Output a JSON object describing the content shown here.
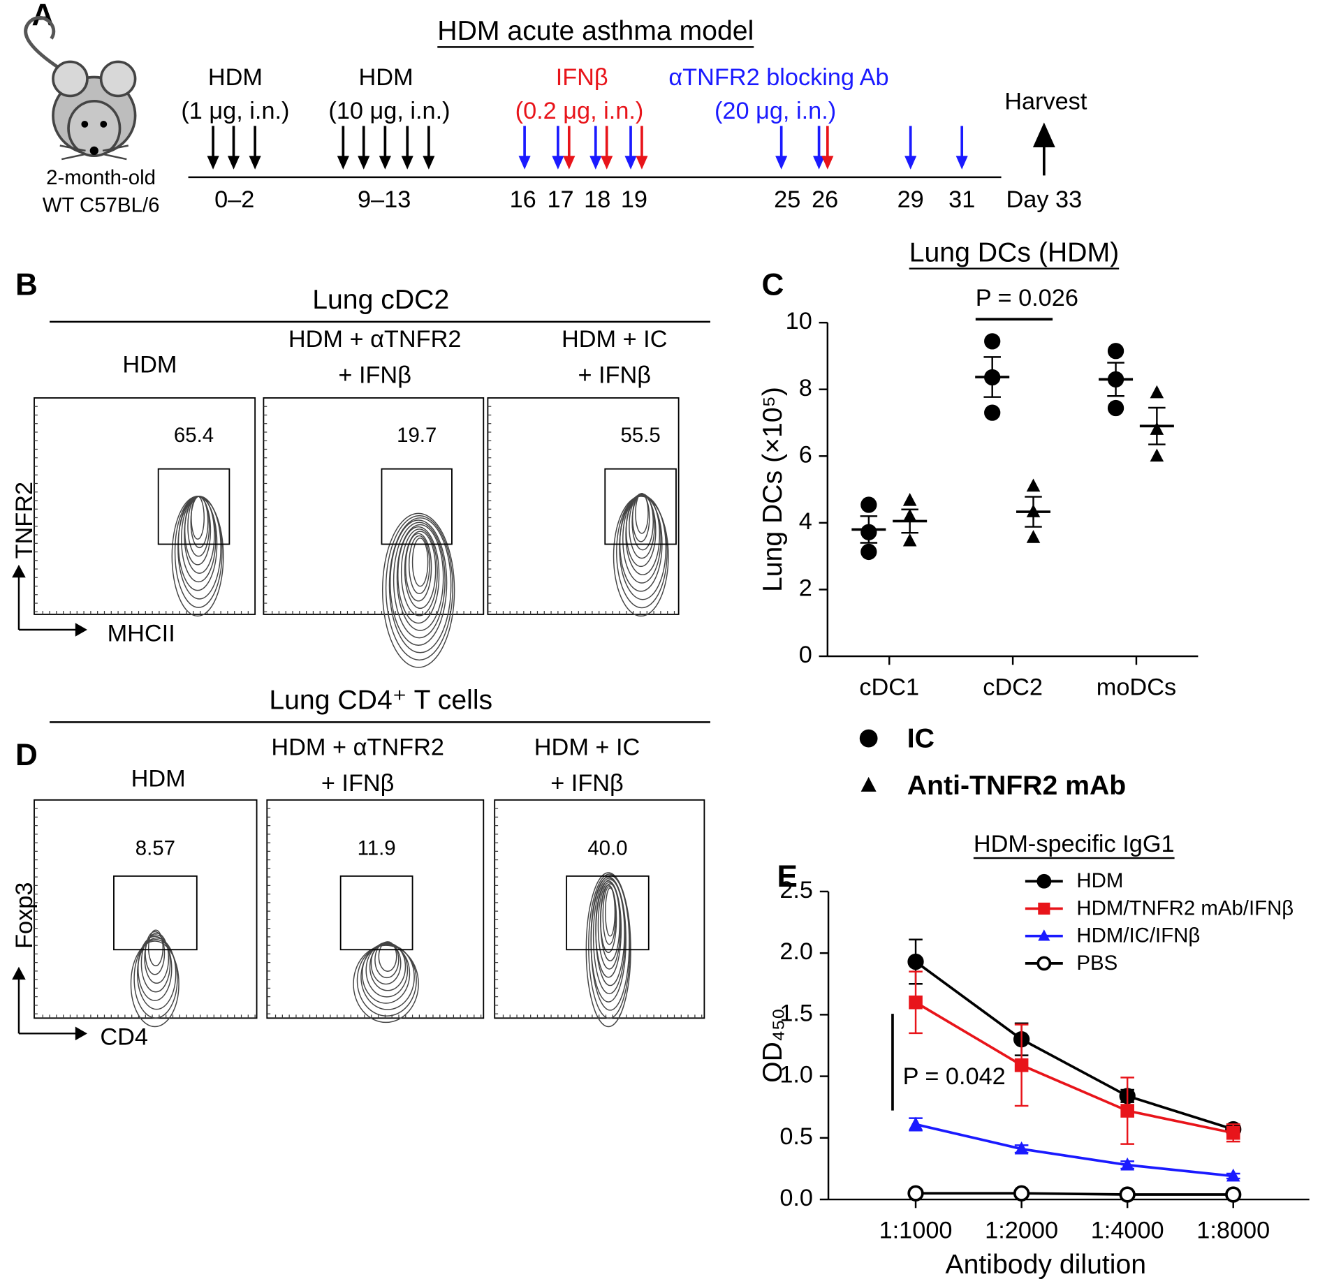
{
  "panel_a": {
    "label": "A",
    "title": "HDM acute asthma model",
    "mouse": [
      "2-month-old",
      "WT C57BL/6"
    ],
    "treatments": [
      {
        "name": "HDM",
        "dose": "(1 μg, i.n.)"
      },
      {
        "name": "HDM",
        "dose": "(10 μg, i.n.)"
      },
      {
        "name": "IFNβ",
        "dose": "(0.2 μg, i.n.)"
      },
      {
        "name": "αTNFR2 blocking Ab",
        "dose": "(20 μg, i.n.)"
      }
    ],
    "harvest": "Harvest",
    "days": [
      "0–2",
      "9–13",
      "16",
      "17",
      "18",
      "19",
      "25",
      "26",
      "29",
      "31",
      "Day 33"
    ]
  },
  "panel_b": {
    "label": "B",
    "title": "Lung cDC2",
    "groups": [
      [
        "HDM"
      ],
      [
        "HDM + αTNFR2",
        "+ IFNβ"
      ],
      [
        "HDM + IC",
        "+ IFNβ"
      ]
    ],
    "gates": [
      "65.4",
      "19.7",
      "55.5"
    ],
    "y_axis": "TNFR2",
    "x_axis": "MHCII"
  },
  "panel_d": {
    "label": "D",
    "title": "Lung CD4⁺ T cells",
    "groups": [
      [
        "HDM"
      ],
      [
        "HDM + αTNFR2",
        "+ IFNβ"
      ],
      [
        "HDM + IC",
        "+ IFNβ"
      ]
    ],
    "gates": [
      "8.57",
      "11.9",
      "40.0"
    ],
    "y_axis": "Foxp3",
    "x_axis": "CD4"
  },
  "chart_data": [
    {
      "type": "scatter",
      "panel": "C",
      "title": "Lung DCs (HDM)",
      "y_label": "Lung DCs (×10⁵)",
      "annotation": "P = 0.026",
      "categories": [
        "cDC1",
        "cDC2",
        "moDCs"
      ],
      "series": [
        {
          "name": "IC",
          "marker": "circle",
          "color": "#000000",
          "values": [
            [
              4.54,
              3.72,
              3.13
            ],
            [
              9.44,
              8.36,
              7.3
            ],
            [
              9.15,
              8.3,
              7.44
            ]
          ],
          "means": [
            3.8,
            8.37,
            8.3
          ],
          "errors": [
            0.4,
            0.6,
            0.5
          ]
        },
        {
          "name": "Anti-TNFR2 mAb",
          "marker": "triangle",
          "color": "#000000",
          "values": [
            [
              4.67,
              4.2,
              3.46
            ],
            [
              5.1,
              4.33,
              3.56
            ],
            [
              7.9,
              6.8,
              6.0
            ]
          ],
          "means": [
            4.05,
            4.33,
            6.9
          ],
          "errors": [
            0.35,
            0.45,
            0.55
          ]
        }
      ],
      "ylim": [
        0,
        10
      ],
      "yticks": [
        0,
        2,
        4,
        6,
        8,
        10
      ]
    },
    {
      "type": "line",
      "panel": "E",
      "title": "HDM-specific IgG1",
      "y_label": "OD₄₅₀",
      "x_label": "Antibody dilution",
      "annotation": "P = 0.042",
      "categories": [
        "1:1000",
        "1:2000",
        "1:4000",
        "1:8000"
      ],
      "series": [
        {
          "name": "HDM",
          "marker": "circle",
          "color": "#000000",
          "values": [
            1.93,
            1.3,
            0.84,
            0.57
          ],
          "errors": [
            0.18,
            0.13,
            0.05,
            0.04
          ]
        },
        {
          "name": "HDM/TNFR2 mAb/IFNβ",
          "marker": "square",
          "color": "#e8141a",
          "values": [
            1.6,
            1.09,
            0.72,
            0.54
          ],
          "errors": [
            0.25,
            0.33,
            0.27,
            0.07
          ]
        },
        {
          "name": "HDM/IC/IFNβ",
          "marker": "triangle",
          "color": "#1a1aff",
          "values": [
            0.61,
            0.41,
            0.28,
            0.19
          ],
          "errors": [
            0.05,
            0.03,
            0.03,
            0.02
          ]
        },
        {
          "name": "PBS",
          "marker": "open-circle",
          "color": "#000000",
          "values": [
            0.05,
            0.05,
            0.04,
            0.04
          ],
          "errors": [
            0,
            0,
            0,
            0
          ]
        }
      ],
      "ylim": [
        0,
        2.5
      ],
      "yticks": [
        {
          "value": 0,
          "label": "0.0"
        },
        0.5,
        {
          "value": 1,
          "label": "1.0"
        },
        1.5,
        {
          "value": 2,
          "label": "2.0"
        },
        2.5
      ]
    }
  ]
}
